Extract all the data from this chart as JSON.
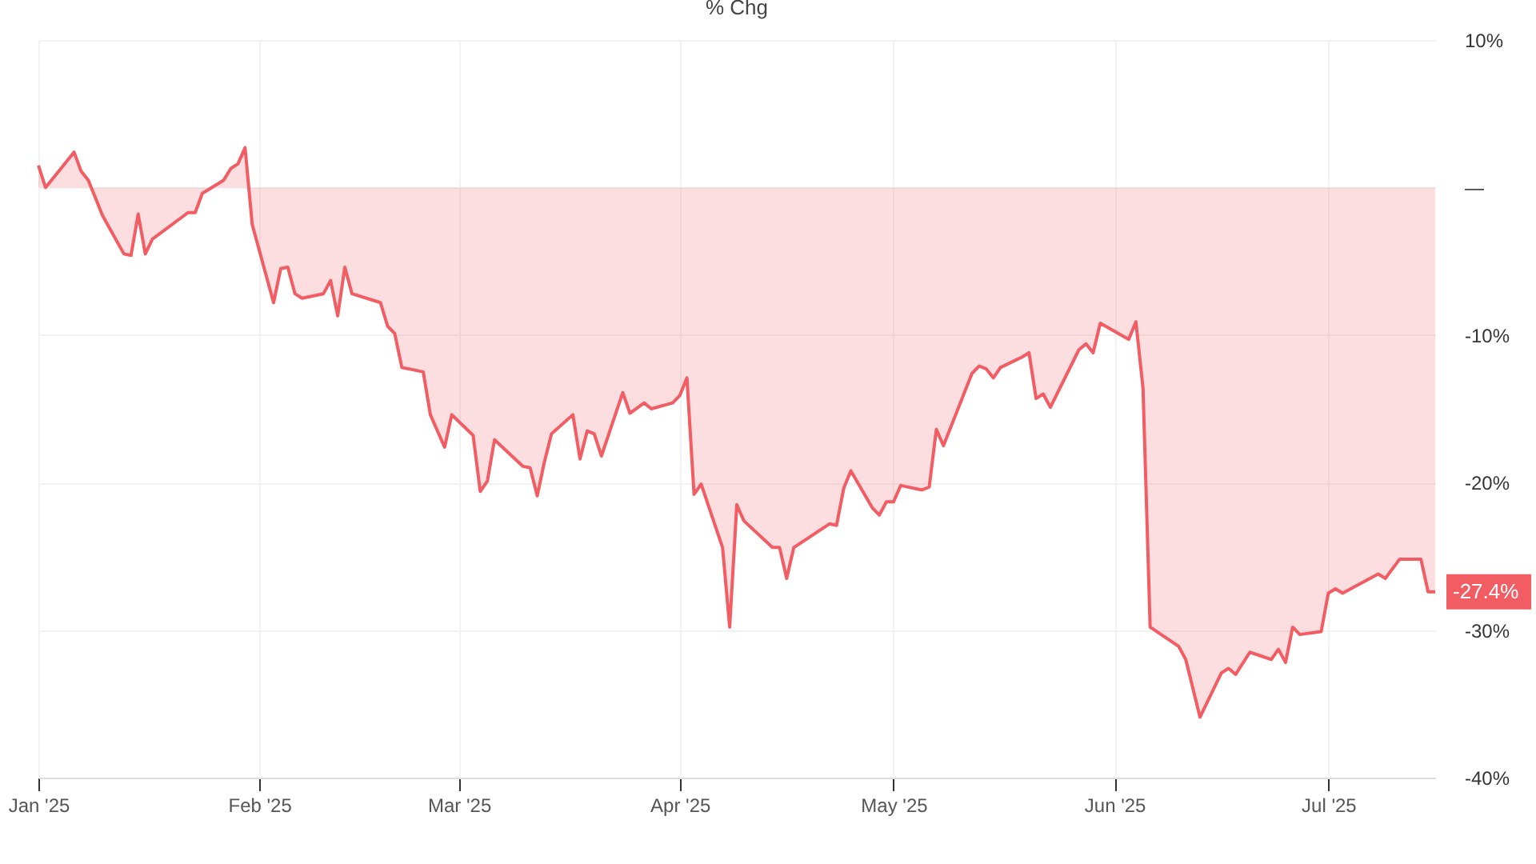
{
  "chart_data": {
    "type": "area",
    "title": "% Chg",
    "x": [
      "2025-01-01",
      "2025-01-02",
      "2025-01-06",
      "2025-01-07",
      "2025-01-08",
      "2025-01-10",
      "2025-01-13",
      "2025-01-14",
      "2025-01-15",
      "2025-01-16",
      "2025-01-17",
      "2025-01-22",
      "2025-01-23",
      "2025-01-24",
      "2025-01-27",
      "2025-01-28",
      "2025-01-29",
      "2025-01-30",
      "2025-01-31",
      "2025-02-03",
      "2025-02-04",
      "2025-02-05",
      "2025-02-06",
      "2025-02-07",
      "2025-02-10",
      "2025-02-11",
      "2025-02-12",
      "2025-02-13",
      "2025-02-14",
      "2025-02-18",
      "2025-02-19",
      "2025-02-20",
      "2025-02-21",
      "2025-02-24",
      "2025-02-25",
      "2025-02-27",
      "2025-02-28",
      "2025-03-03",
      "2025-03-04",
      "2025-03-05",
      "2025-03-06",
      "2025-03-10",
      "2025-03-11",
      "2025-03-12",
      "2025-03-13",
      "2025-03-14",
      "2025-03-17",
      "2025-03-18",
      "2025-03-19",
      "2025-03-20",
      "2025-03-21",
      "2025-03-24",
      "2025-03-25",
      "2025-03-27",
      "2025-03-28",
      "2025-03-31",
      "2025-04-01",
      "2025-04-02",
      "2025-04-03",
      "2025-04-04",
      "2025-04-07",
      "2025-04-08",
      "2025-04-09",
      "2025-04-10",
      "2025-04-14",
      "2025-04-15",
      "2025-04-16",
      "2025-04-17",
      "2025-04-22",
      "2025-04-23",
      "2025-04-24",
      "2025-04-25",
      "2025-04-28",
      "2025-04-29",
      "2025-04-30",
      "2025-05-01",
      "2025-05-02",
      "2025-05-05",
      "2025-05-06",
      "2025-05-07",
      "2025-05-08",
      "2025-05-12",
      "2025-05-13",
      "2025-05-14",
      "2025-05-15",
      "2025-05-16",
      "2025-05-19",
      "2025-05-20",
      "2025-05-21",
      "2025-05-22",
      "2025-05-23",
      "2025-05-27",
      "2025-05-28",
      "2025-05-29",
      "2025-05-30",
      "2025-06-03",
      "2025-06-04",
      "2025-06-05",
      "2025-06-06",
      "2025-06-10",
      "2025-06-11",
      "2025-06-13",
      "2025-06-16",
      "2025-06-17",
      "2025-06-18",
      "2025-06-20",
      "2025-06-23",
      "2025-06-24",
      "2025-06-25",
      "2025-06-26",
      "2025-06-27",
      "2025-06-30",
      "2025-07-01",
      "2025-07-02",
      "2025-07-03",
      "2025-07-08",
      "2025-07-09",
      "2025-07-11",
      "2025-07-14",
      "2025-07-15",
      "2025-07-16"
    ],
    "series": [
      {
        "color": "#f25c63",
        "values": [
          1.5,
          0,
          2.4,
          1.1,
          0.5,
          -1.9,
          -4.5,
          -4.6,
          -1.8,
          -4.5,
          -3.5,
          -1.7,
          -1.7,
          -0.4,
          0.5,
          1.3,
          1.6,
          2.7,
          -2.5,
          -7.8,
          -5.5,
          -5.4,
          -7.2,
          -7.5,
          -7.2,
          -6.3,
          -8.7,
          -5.4,
          -7.2,
          -7.8,
          -9.4,
          -9.9,
          -12.2,
          -12.5,
          -15.4,
          -17.6,
          -15.4,
          -16.8,
          -20.6,
          -19.9,
          -17.1,
          -18.9,
          -19.0,
          -20.9,
          -18.6,
          -16.7,
          -15.4,
          -18.4,
          -16.5,
          -16.7,
          -18.2,
          -13.9,
          -15.3,
          -14.6,
          -15.0,
          -14.6,
          -14.1,
          -12.9,
          -20.8,
          -20.1,
          -24.4,
          -29.8,
          -21.5,
          -22.6,
          -24.4,
          -24.4,
          -26.5,
          -24.4,
          -22.8,
          -22.9,
          -20.4,
          -19.2,
          -21.7,
          -22.2,
          -21.3,
          -21.3,
          -20.2,
          -20.5,
          -20.3,
          -16.4,
          -17.5,
          -12.6,
          -12.1,
          -12.3,
          -12.9,
          -12.2,
          -11.5,
          -11.2,
          -14.3,
          -14.0,
          -14.9,
          -11.0,
          -10.6,
          -11.2,
          -9.2,
          -10.3,
          -9.1,
          -13.6,
          -29.8,
          -31.1,
          -32.0,
          -35.9,
          -32.9,
          -32.6,
          -33.0,
          -31.5,
          -32.0,
          -31.3,
          -32.2,
          -29.8,
          -30.3,
          -30.1,
          -27.5,
          -27.2,
          -27.5,
          -26.2,
          -26.5,
          -25.2,
          -25.2,
          -27.4,
          -27.4
        ]
      }
    ],
    "xlim": [
      "2025-01-01",
      "2025-07-16"
    ],
    "xticks": [
      {
        "value": "2025-01-01",
        "label": "Jan '25"
      },
      {
        "value": "2025-02-01",
        "label": "Feb '25"
      },
      {
        "value": "2025-03-01",
        "label": "Mar '25"
      },
      {
        "value": "2025-04-01",
        "label": "Apr '25"
      },
      {
        "value": "2025-05-01",
        "label": "May '25"
      },
      {
        "value": "2025-06-01",
        "label": "Jun '25"
      },
      {
        "value": "2025-07-01",
        "label": "Jul '25"
      }
    ],
    "ylim": [
      -40,
      10
    ],
    "yticks": [
      {
        "value": 10,
        "label": "10%"
      },
      {
        "value": 0,
        "label": "—"
      },
      {
        "value": -10,
        "label": "-10%"
      },
      {
        "value": -20,
        "label": "-20%"
      },
      {
        "value": -30,
        "label": "-30%"
      },
      {
        "value": -40,
        "label": "-40%"
      }
    ],
    "grid": true,
    "annotations": [
      "-27.4%"
    ]
  }
}
